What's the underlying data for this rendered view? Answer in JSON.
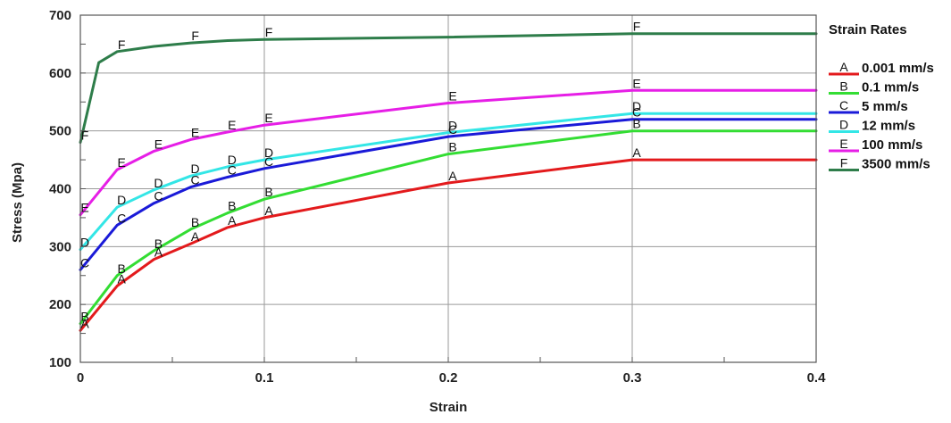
{
  "chart_data": {
    "type": "line",
    "title": "",
    "xlabel": "Strain",
    "ylabel": "Stress (Mpa)",
    "xlim": [
      0,
      0.4
    ],
    "ylim": [
      100,
      700
    ],
    "x_ticks": [
      0,
      0.1,
      0.2,
      0.3,
      0.4
    ],
    "x_tick_labels": [
      "0",
      "0.1",
      "0.2",
      "0.3",
      "0.4"
    ],
    "y_ticks": [
      100,
      200,
      300,
      400,
      500,
      600,
      700
    ],
    "y_tick_labels": [
      "100",
      "200",
      "300",
      "400",
      "500",
      "600",
      "700"
    ],
    "grid": true,
    "legend": {
      "title": "Strain Rates",
      "placement": "right"
    },
    "series": [
      {
        "name": "0.001 mm/s",
        "marker": "A",
        "color": "#e31a1c",
        "x": [
          0,
          0.02,
          0.04,
          0.06,
          0.08,
          0.1,
          0.2,
          0.3,
          0.4
        ],
        "y": [
          155,
          232,
          278,
          305,
          333,
          350,
          410,
          450,
          450
        ]
      },
      {
        "name": "0.1 mm/s",
        "marker": "B",
        "color": "#33dd33",
        "x": [
          0,
          0.02,
          0.04,
          0.06,
          0.08,
          0.1,
          0.2,
          0.3,
          0.4
        ],
        "y": [
          167,
          250,
          293,
          330,
          358,
          382,
          460,
          500,
          500
        ]
      },
      {
        "name": "5 mm/s",
        "marker": "C",
        "color": "#1a1ad8",
        "x": [
          0,
          0.02,
          0.04,
          0.06,
          0.08,
          0.1,
          0.2,
          0.3,
          0.4
        ],
        "y": [
          260,
          337,
          375,
          403,
          420,
          435,
          490,
          520,
          520
        ]
      },
      {
        "name": "12 mm/s",
        "marker": "D",
        "color": "#33e6e6",
        "x": [
          0,
          0.02,
          0.04,
          0.06,
          0.08,
          0.1,
          0.2,
          0.3,
          0.4
        ],
        "y": [
          295,
          368,
          398,
          422,
          438,
          450,
          497,
          530,
          530
        ]
      },
      {
        "name": "100 mm/s",
        "marker": "E",
        "color": "#e61ee6",
        "x": [
          0,
          0.02,
          0.04,
          0.06,
          0.08,
          0.1,
          0.2,
          0.3,
          0.4
        ],
        "y": [
          355,
          433,
          465,
          485,
          498,
          510,
          548,
          570,
          570
        ]
      },
      {
        "name": "3500 mm/s",
        "marker": "F",
        "color": "#2e7d4a",
        "x": [
          0,
          0.01,
          0.02,
          0.04,
          0.06,
          0.08,
          0.1,
          0.2,
          0.3,
          0.4
        ],
        "y": [
          480,
          618,
          637,
          646,
          652,
          656,
          658,
          662,
          668,
          668
        ]
      }
    ],
    "marker_points": [
      {
        "series": 0,
        "label": "A",
        "x": [
          0,
          0.02,
          0.04,
          0.06,
          0.08,
          0.1,
          0.2,
          0.3
        ]
      },
      {
        "series": 1,
        "label": "B",
        "x": [
          0,
          0.02,
          0.04,
          0.06,
          0.08,
          0.1,
          0.2,
          0.3
        ]
      },
      {
        "series": 2,
        "label": "C",
        "x": [
          0,
          0.02,
          0.04,
          0.06,
          0.08,
          0.1,
          0.2,
          0.3
        ]
      },
      {
        "series": 3,
        "label": "D",
        "x": [
          0,
          0.02,
          0.04,
          0.06,
          0.08,
          0.1,
          0.2,
          0.3
        ]
      },
      {
        "series": 4,
        "label": "E",
        "x": [
          0,
          0.02,
          0.04,
          0.06,
          0.08,
          0.1,
          0.2,
          0.3
        ]
      },
      {
        "series": 5,
        "label": "F",
        "x": [
          0,
          0.02,
          0.06,
          0.1,
          0.3
        ]
      }
    ]
  }
}
